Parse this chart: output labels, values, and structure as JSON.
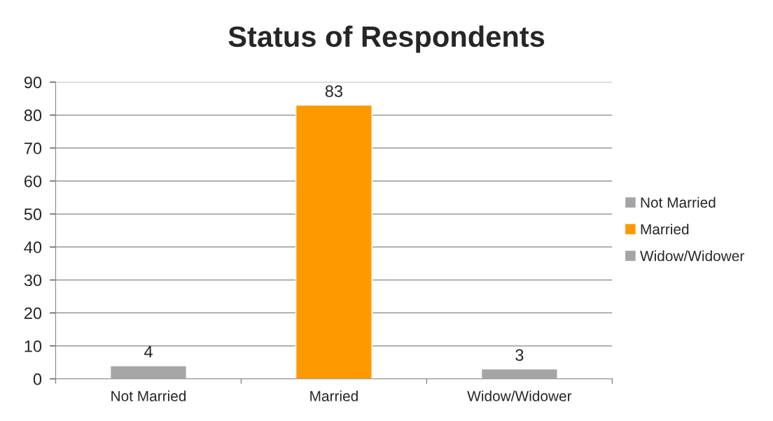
{
  "chart_data": {
    "type": "bar",
    "title": "Status of Respondents",
    "categories": [
      "Not Married",
      "Married",
      "Widow/Widower"
    ],
    "series": [
      {
        "name": "Not Married",
        "color": "#a5a5a5",
        "values": [
          4,
          null,
          null
        ]
      },
      {
        "name": "Married",
        "color": "#ff9900",
        "values": [
          null,
          83,
          null
        ]
      },
      {
        "name": "Widow/Widower",
        "color": "#a5a5a5",
        "values": [
          null,
          null,
          3
        ]
      }
    ],
    "ylim": [
      0,
      90
    ],
    "yticks": [
      0,
      10,
      20,
      30,
      40,
      50,
      60,
      70,
      80,
      90
    ],
    "grid": "y",
    "legend": "right",
    "data_labels": true
  }
}
